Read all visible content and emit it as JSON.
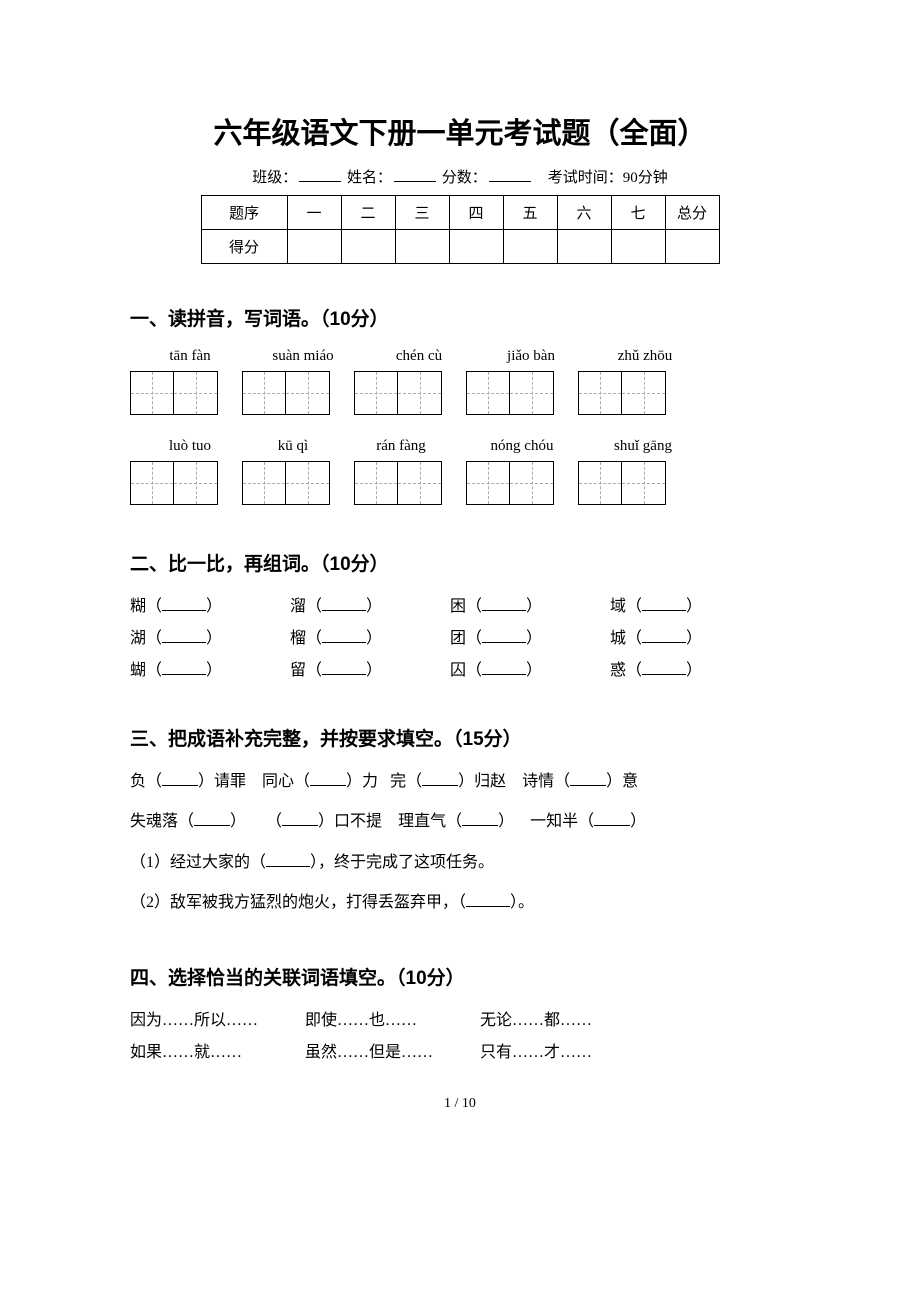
{
  "title": "六年级语文下册一单元考试题（全面）",
  "info": {
    "class_label": "班级：",
    "name_label": "姓名：",
    "score_label": "分数：",
    "time_label": "考试时间：90分钟"
  },
  "score_table": {
    "row_labels": [
      "题序",
      "得分"
    ],
    "columns": [
      "一",
      "二",
      "三",
      "四",
      "五",
      "六",
      "七",
      "总分"
    ]
  },
  "section1": {
    "heading": "一、读拼音，写词语。（10分）",
    "pinyin_row1": [
      "tān fàn",
      "suàn miáo",
      "chén cù",
      "jiǎo bàn",
      "zhǔ zhōu"
    ],
    "pinyin_row2": [
      "luò tuo",
      "kū qì",
      "rán fàng",
      "nóng chóu",
      "shuǐ gāng"
    ]
  },
  "section2": {
    "heading": "二、比一比，再组词。（10分）",
    "rows": [
      [
        "糊",
        "溜",
        "困",
        "域"
      ],
      [
        "湖",
        "榴",
        "团",
        "城"
      ],
      [
        "蝴",
        "留",
        "囚",
        "惑"
      ]
    ]
  },
  "section3": {
    "heading": "三、把成语补充完整，并按要求填空。（15分）",
    "line1": {
      "a1": "负（",
      "a2": "）请罪",
      "b1": "同心（",
      "b2": "）力",
      "c1": "完（",
      "c2": "）归赵",
      "d1": "诗情（",
      "d2": "）意"
    },
    "line2": {
      "a1": "失魂落（",
      "a2": "）",
      "b1": "（",
      "b2": "）口不提",
      "c1": "理直气（",
      "c2": "）",
      "d1": "一知半（",
      "d2": "）"
    },
    "q1_a": "（1）经过大家的（",
    "q1_b": "），终于完成了这项任务。",
    "q2_a": "（2）敌军被我方猛烈的炮火，打得丢盔弃甲，（",
    "q2_b": "）。"
  },
  "section4": {
    "heading": "四、选择恰当的关联词语填空。（10分）",
    "row1": [
      "因为……所以……",
      "即使……也……",
      "无论……都……"
    ],
    "row2": [
      "如果……就……",
      "虽然……但是……",
      "只有……才……"
    ]
  },
  "page_num": "1 / 10",
  "colors": {
    "background": "#ffffff",
    "text": "#000000",
    "border": "#000000",
    "dash": "#aaaaaa"
  }
}
